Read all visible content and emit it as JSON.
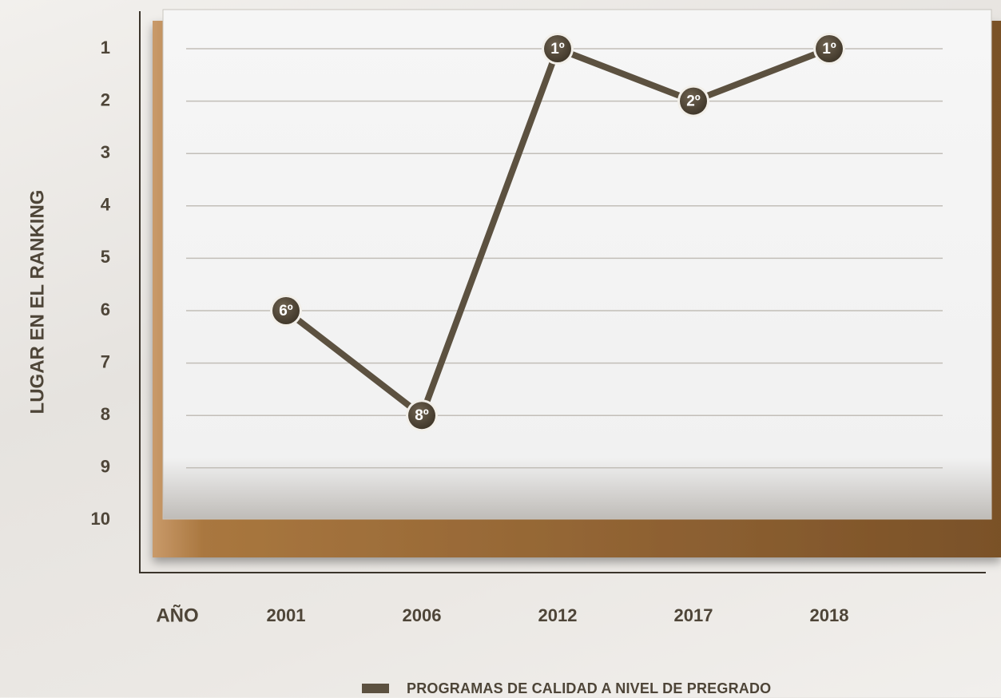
{
  "chart_data": {
    "type": "line",
    "ylabel": "LUGAR EN EL RANKING",
    "xlabel": "AÑO",
    "categories": [
      "2001",
      "2006",
      "2012",
      "2017",
      "2018"
    ],
    "yticks": [
      "1",
      "2",
      "3",
      "4",
      "5",
      "6",
      "7",
      "8",
      "9",
      "10"
    ],
    "ylim": [
      1,
      10
    ],
    "y_inverted": true,
    "grid": true,
    "series": [
      {
        "name": "PROGRAMAS DE CALIDAD A NIVEL DE PREGRADO",
        "values": [
          6,
          8,
          1,
          2,
          1
        ],
        "labels": [
          "6º",
          "8º",
          "1º",
          "2º",
          "1º"
        ],
        "color": "#5c5140"
      }
    ],
    "legend_position": "bottom-center"
  }
}
